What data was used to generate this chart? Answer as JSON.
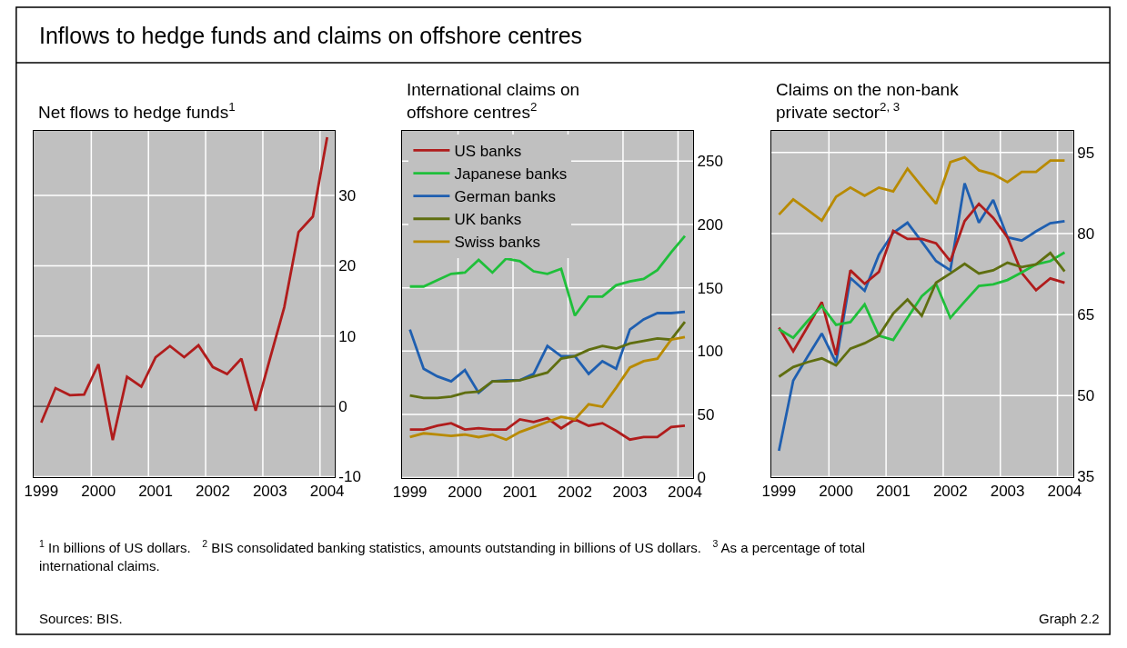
{
  "chart_data": [
    {
      "type": "other",
      "title": "Inflows to hedge funds and claims on offshore centres",
      "annotations": [
        "$^{1}$ In billions of US dollars.   $^{2}$ BIS consolidated banking statistics, amounts outstanding in billions of US dollars.   $^{3}$ As a percentage of total international claims.",
        "Sources: BIS.",
        "Graph 2.2"
      ]
    },
    {
      "type": "line",
      "title": "Net flows to hedge funds$^{1}$",
      "x": [
        1999,
        1999.25,
        1999.5,
        1999.75,
        2000,
        2000.25,
        2000.5,
        2000.75,
        2001,
        2001.25,
        2001.5,
        2001.75,
        2002,
        2002.25,
        2002.5,
        2002.75,
        2003,
        2003.25,
        2003.5,
        2003.75,
        2004
      ],
      "series": [
        {
          "color": "#b01c1c",
          "values": [
            -2.3,
            2.6,
            1.6,
            1.7,
            6.0,
            -4.8,
            4.2,
            2.8,
            7.0,
            8.6,
            7.0,
            8.7,
            5.6,
            4.6,
            6.8,
            -0.6,
            6.8,
            14.1,
            24.8,
            27.0,
            38.3
          ]
        }
      ],
      "xlim": [
        1998.86,
        2004.13
      ],
      "xticks": [
        1999,
        2000,
        2001,
        2002,
        2003,
        2004,
        {
          "value": 1999.875,
          "label": null
        },
        {
          "value": 2000.875,
          "label": null
        },
        {
          "value": 2001.875,
          "label": null
        },
        {
          "value": 2002.875,
          "label": null
        },
        {
          "value": 2003.875,
          "label": null
        }
      ],
      "ylim": [
        -10,
        39.2
      ],
      "yticks": [
        -10,
        0,
        10,
        20,
        30
      ],
      "ref_lines": [
        {
          "axis": "y",
          "value": 0,
          "color": "#404040"
        }
      ],
      "grid": true,
      "legend": false
    },
    {
      "type": "line",
      "title": "International claims on\noffshore centres$^{2}$",
      "x": [
        1999,
        1999.25,
        1999.5,
        1999.75,
        2000,
        2000.25,
        2000.5,
        2000.75,
        2001,
        2001.25,
        2001.5,
        2001.75,
        2002,
        2002.25,
        2002.5,
        2002.75,
        2003,
        2003.25,
        2003.5,
        2003.75,
        2004
      ],
      "series": [
        {
          "name": "US banks",
          "color": "#b01c1c",
          "values": [
            38,
            38,
            41,
            43,
            38,
            39,
            38,
            38,
            46,
            44,
            47,
            39,
            46,
            41,
            43,
            37,
            30,
            32,
            32,
            40,
            41
          ]
        },
        {
          "name": "Japanese banks",
          "color": "#1fbf3a",
          "values": [
            151,
            151,
            156,
            161,
            162,
            172,
            162,
            173,
            171,
            163,
            161,
            165,
            128,
            143,
            143,
            152,
            155,
            157,
            164,
            178,
            191
          ]
        },
        {
          "name": "German banks",
          "color": "#1f5fb0",
          "values": [
            117,
            86,
            80,
            76,
            85,
            67,
            76,
            77,
            77,
            82,
            104,
            96,
            96,
            82,
            92,
            86,
            117,
            125,
            130,
            130,
            131
          ]
        },
        {
          "name": "UK banks",
          "color": "#5f6e10",
          "values": [
            65,
            63,
            63,
            64,
            67,
            68,
            76,
            76,
            77,
            80,
            83,
            94,
            96,
            101,
            104,
            102,
            106,
            108,
            110,
            109,
            123
          ]
        },
        {
          "name": "Swiss banks",
          "color": "#b88a00",
          "values": [
            32,
            35,
            34,
            33,
            34,
            32,
            34,
            30,
            36,
            40,
            44,
            48,
            46,
            58,
            56,
            71,
            87,
            92,
            94,
            109,
            111
          ]
        }
      ],
      "xlim": [
        1998.85,
        2004.15
      ],
      "xticks": [
        1999,
        2000,
        2001,
        2002,
        2003,
        2004,
        {
          "value": 1999.875,
          "label": null
        },
        {
          "value": 2000.875,
          "label": null
        },
        {
          "value": 2001.875,
          "label": null
        },
        {
          "value": 2002.875,
          "label": null
        },
        {
          "value": 2003.875,
          "label": null
        }
      ],
      "ylim": [
        0,
        274
      ],
      "yticks": [
        0,
        50,
        100,
        150,
        200,
        250
      ],
      "grid": true,
      "legend": "top left"
    },
    {
      "type": "line",
      "title": "Claims on the non-bank\nprivate sector$^{2, 3}$",
      "x": [
        1999,
        1999.25,
        1999.5,
        1999.75,
        2000,
        2000.25,
        2000.5,
        2000.75,
        2001,
        2001.25,
        2001.5,
        2001.75,
        2002,
        2002.25,
        2002.5,
        2002.75,
        2003,
        2003.25,
        2003.5,
        2003.75,
        2004
      ],
      "series": [
        {
          "color": "#b88a00",
          "values": [
            83.5,
            86.3,
            84.4,
            82.4,
            86.8,
            88.5,
            87.0,
            88.5,
            87.8,
            92.0,
            88.7,
            85.5,
            93.2,
            94.1,
            91.7,
            91.0,
            89.5,
            91.4,
            91.4,
            93.5,
            93.5
          ]
        },
        {
          "color": "#1f5fb0",
          "values": [
            39.8,
            52.8,
            57.2,
            61.5,
            56.1,
            71.8,
            69.4,
            76.1,
            80.1,
            82.0,
            78.5,
            74.9,
            73.2,
            89.3,
            82.0,
            86.2,
            79.3,
            78.7,
            80.4,
            81.9,
            82.3
          ]
        },
        {
          "color": "#b01c1c",
          "values": [
            62.6,
            58.2,
            62.7,
            67.3,
            57.5,
            73.2,
            70.7,
            72.9,
            80.5,
            79.0,
            79.0,
            78.2,
            74.9,
            82.3,
            85.5,
            82.9,
            79.3,
            72.7,
            69.5,
            71.7,
            70.9
          ]
        },
        {
          "color": "#1fbf3a",
          "values": [
            62.3,
            60.7,
            63.8,
            66.6,
            63.1,
            63.6,
            66.9,
            61.1,
            60.3,
            64.4,
            68.4,
            70.7,
            64.4,
            67.4,
            70.3,
            70.6,
            71.4,
            72.8,
            74.3,
            74.9,
            76.5
          ]
        },
        {
          "color": "#5f6e10",
          "values": [
            53.5,
            55.3,
            56.2,
            56.9,
            55.6,
            58.7,
            59.7,
            61.1,
            65.2,
            67.8,
            64.8,
            70.9,
            72.6,
            74.4,
            72.6,
            73.2,
            74.6,
            73.8,
            74.3,
            76.4,
            73.0
          ]
        }
      ],
      "xlim": [
        1998.86,
        2004.15
      ],
      "xticks": [
        1999,
        2000,
        2001,
        2002,
        2003,
        2004,
        {
          "value": 1999.875,
          "label": null
        },
        {
          "value": 2000.875,
          "label": null
        },
        {
          "value": 2001.875,
          "label": null
        },
        {
          "value": 2002.875,
          "label": null
        },
        {
          "value": 2003.875,
          "label": null
        }
      ],
      "ylim": [
        35,
        99
      ],
      "yticks": [
        35,
        50,
        65,
        80,
        95
      ],
      "grid": true,
      "legend": false
    }
  ]
}
